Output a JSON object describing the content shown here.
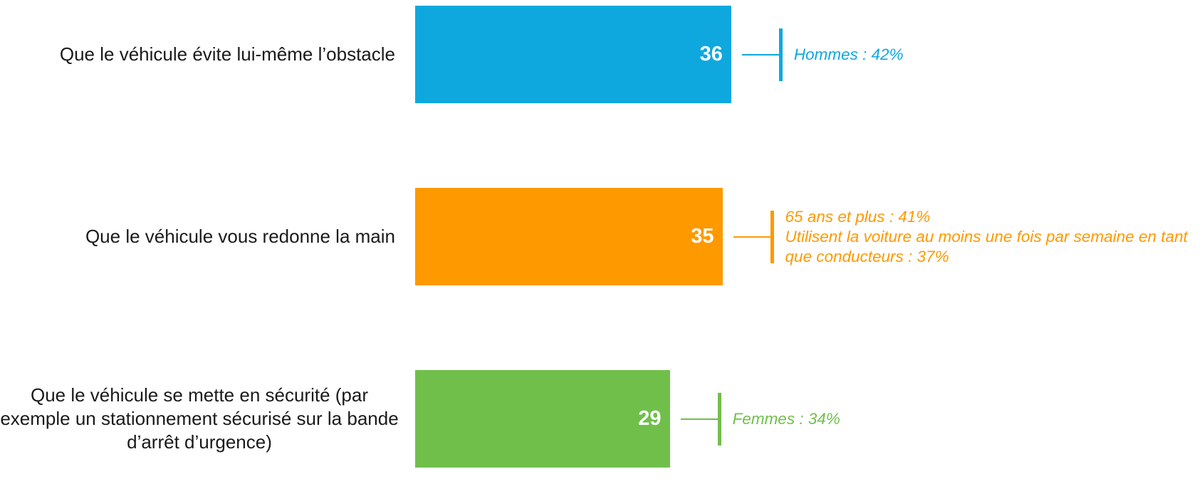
{
  "chart_data": {
    "type": "bar",
    "orientation": "horizontal",
    "categories": [
      "Que le véhicule évite lui-même l’obstacle",
      "Que le véhicule vous redonne la main",
      "Que le véhicule se mette en sécurité (par exemple un stationnement sécurisé sur la bande d’arrêt d’urgence)"
    ],
    "values": [
      36,
      35,
      29
    ],
    "colors": [
      "#0ea8df",
      "#fe9900",
      "#70bf4b"
    ],
    "annotations": [
      [
        "Hommes : 42%"
      ],
      [
        "65 ans et plus : 41%",
        "Utilisent la voiture au moins une fois par semaine en tant que conducteurs : 37%"
      ],
      [
        "Femmes : 34%"
      ]
    ]
  }
}
